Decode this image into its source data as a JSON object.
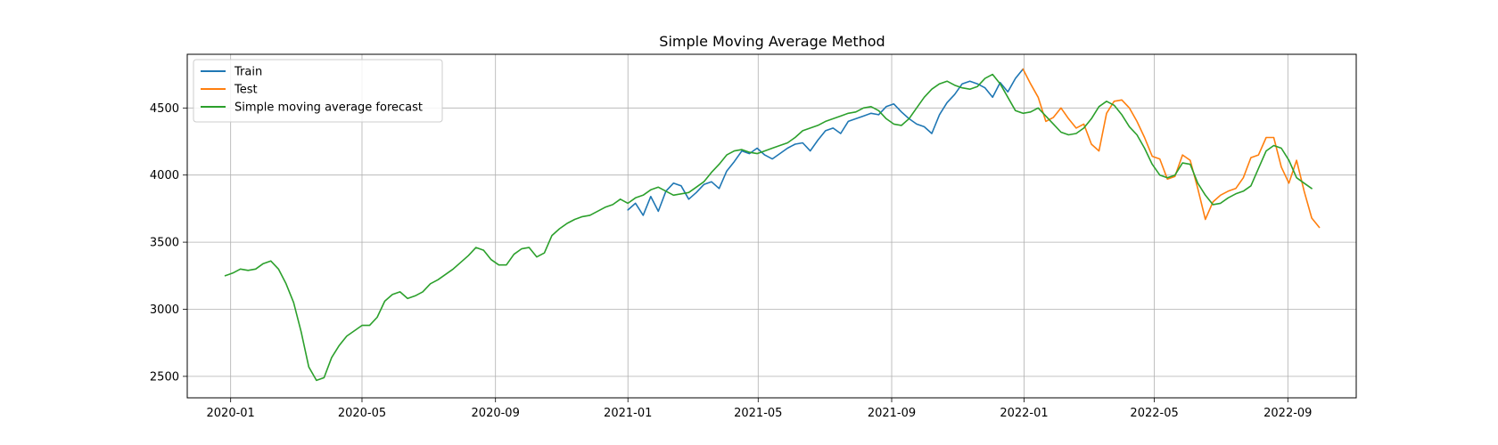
{
  "chart_data": {
    "type": "line",
    "title": "Simple Moving Average Method",
    "xlabel": "",
    "ylabel": "",
    "grid": true,
    "legend_placement": "upper-left",
    "xlim": [
      "2019-11-22",
      "2022-11-03"
    ],
    "ylim": [
      2340,
      4900
    ],
    "x_ticks": [
      "2020-01",
      "2020-05",
      "2020-09",
      "2021-01",
      "2021-05",
      "2021-09",
      "2022-01",
      "2022-05",
      "2022-09"
    ],
    "y_ticks": [
      2500,
      3000,
      3500,
      4000,
      4500
    ],
    "series": [
      {
        "name": "Train",
        "color": "#1f77b4",
        "x": [
          "2021-01-01",
          "2021-01-08",
          "2021-01-15",
          "2021-01-22",
          "2021-01-29",
          "2021-02-05",
          "2021-02-12",
          "2021-02-19",
          "2021-02-26",
          "2021-03-05",
          "2021-03-12",
          "2021-03-19",
          "2021-03-26",
          "2021-04-02",
          "2021-04-09",
          "2021-04-16",
          "2021-04-23",
          "2021-04-30",
          "2021-05-07",
          "2021-05-14",
          "2021-05-21",
          "2021-05-28",
          "2021-06-04",
          "2021-06-11",
          "2021-06-18",
          "2021-06-25",
          "2021-07-02",
          "2021-07-09",
          "2021-07-16",
          "2021-07-23",
          "2021-07-30",
          "2021-08-06",
          "2021-08-13",
          "2021-08-20",
          "2021-08-27",
          "2021-09-03",
          "2021-09-10",
          "2021-09-17",
          "2021-09-24",
          "2021-10-01",
          "2021-10-08",
          "2021-10-15",
          "2021-10-22",
          "2021-10-29",
          "2021-11-05",
          "2021-11-12",
          "2021-11-19",
          "2021-11-26",
          "2021-12-03",
          "2021-12-10",
          "2021-12-17",
          "2021-12-24",
          "2021-12-31"
        ],
        "values": [
          3740,
          3790,
          3700,
          3840,
          3730,
          3880,
          3940,
          3920,
          3820,
          3870,
          3930,
          3950,
          3900,
          4030,
          4100,
          4180,
          4160,
          4200,
          4150,
          4120,
          4160,
          4200,
          4230,
          4240,
          4180,
          4260,
          4330,
          4350,
          4310,
          4400,
          4420,
          4440,
          4460,
          4450,
          4510,
          4530,
          4470,
          4420,
          4380,
          4360,
          4310,
          4450,
          4540,
          4600,
          4680,
          4700,
          4680,
          4650,
          4580,
          4690,
          4620,
          4720,
          4790
        ]
      },
      {
        "name": "Test",
        "color": "#ff7f0e",
        "x": [
          "2021-12-31",
          "2022-01-07",
          "2022-01-14",
          "2022-01-21",
          "2022-01-28",
          "2022-02-04",
          "2022-02-11",
          "2022-02-18",
          "2022-02-25",
          "2022-03-04",
          "2022-03-11",
          "2022-03-18",
          "2022-03-25",
          "2022-04-01",
          "2022-04-08",
          "2022-04-15",
          "2022-04-22",
          "2022-04-29",
          "2022-05-06",
          "2022-05-13",
          "2022-05-20",
          "2022-05-27",
          "2022-06-03",
          "2022-06-10",
          "2022-06-17",
          "2022-06-24",
          "2022-07-01",
          "2022-07-08",
          "2022-07-15",
          "2022-07-22",
          "2022-07-29",
          "2022-08-05",
          "2022-08-12",
          "2022-08-19",
          "2022-08-26",
          "2022-09-02",
          "2022-09-09",
          "2022-09-16",
          "2022-09-23",
          "2022-09-30"
        ],
        "values": [
          4790,
          4680,
          4580,
          4400,
          4430,
          4500,
          4420,
          4350,
          4380,
          4230,
          4180,
          4460,
          4550,
          4560,
          4500,
          4400,
          4280,
          4140,
          4120,
          3970,
          3990,
          4150,
          4110,
          3900,
          3670,
          3800,
          3850,
          3880,
          3900,
          3980,
          4130,
          4150,
          4280,
          4280,
          4060,
          3940,
          4110,
          3880,
          3680,
          3610
        ]
      },
      {
        "name": "Simple moving average forecast",
        "color": "#2ca02c",
        "x": [
          "2019-12-27",
          "2020-01-03",
          "2020-01-10",
          "2020-01-17",
          "2020-01-24",
          "2020-01-31",
          "2020-02-07",
          "2020-02-14",
          "2020-02-21",
          "2020-02-28",
          "2020-03-06",
          "2020-03-13",
          "2020-03-20",
          "2020-03-27",
          "2020-04-03",
          "2020-04-10",
          "2020-04-17",
          "2020-04-24",
          "2020-05-01",
          "2020-05-08",
          "2020-05-15",
          "2020-05-22",
          "2020-05-29",
          "2020-06-05",
          "2020-06-12",
          "2020-06-19",
          "2020-06-26",
          "2020-07-03",
          "2020-07-10",
          "2020-07-17",
          "2020-07-24",
          "2020-07-31",
          "2020-08-07",
          "2020-08-14",
          "2020-08-21",
          "2020-08-28",
          "2020-09-04",
          "2020-09-11",
          "2020-09-18",
          "2020-09-25",
          "2020-10-02",
          "2020-10-09",
          "2020-10-16",
          "2020-10-23",
          "2020-10-30",
          "2020-11-06",
          "2020-11-13",
          "2020-11-20",
          "2020-11-27",
          "2020-12-04",
          "2020-12-11",
          "2020-12-18",
          "2020-12-25",
          "2021-01-01",
          "2021-01-08",
          "2021-01-15",
          "2021-01-22",
          "2021-01-29",
          "2021-02-05",
          "2021-02-12",
          "2021-02-19",
          "2021-02-26",
          "2021-03-05",
          "2021-03-12",
          "2021-03-19",
          "2021-03-26",
          "2021-04-02",
          "2021-04-09",
          "2021-04-16",
          "2021-04-23",
          "2021-04-30",
          "2021-05-07",
          "2021-05-14",
          "2021-05-21",
          "2021-05-28",
          "2021-06-04",
          "2021-06-11",
          "2021-06-18",
          "2021-06-25",
          "2021-07-02",
          "2021-07-09",
          "2021-07-16",
          "2021-07-23",
          "2021-07-30",
          "2021-08-06",
          "2021-08-13",
          "2021-08-20",
          "2021-08-27",
          "2021-09-03",
          "2021-09-10",
          "2021-09-17",
          "2021-09-24",
          "2021-10-01",
          "2021-10-08",
          "2021-10-15",
          "2021-10-22",
          "2021-10-29",
          "2021-11-05",
          "2021-11-12",
          "2021-11-19",
          "2021-11-26",
          "2021-12-03",
          "2021-12-10",
          "2021-12-17",
          "2021-12-24",
          "2021-12-31",
          "2022-01-07",
          "2022-01-14",
          "2022-01-21",
          "2022-01-28",
          "2022-02-04",
          "2022-02-11",
          "2022-02-18",
          "2022-02-25",
          "2022-03-04",
          "2022-03-11",
          "2022-03-18",
          "2022-03-25",
          "2022-04-01",
          "2022-04-08",
          "2022-04-15",
          "2022-04-22",
          "2022-04-29",
          "2022-05-06",
          "2022-05-13",
          "2022-05-20",
          "2022-05-27",
          "2022-06-03",
          "2022-06-10",
          "2022-06-17",
          "2022-06-24",
          "2022-07-01",
          "2022-07-08",
          "2022-07-15",
          "2022-07-22",
          "2022-07-29",
          "2022-08-05",
          "2022-08-12",
          "2022-08-19",
          "2022-08-26",
          "2022-09-02",
          "2022-09-09",
          "2022-09-16",
          "2022-09-23"
        ],
        "values": [
          3250,
          3270,
          3300,
          3290,
          3300,
          3340,
          3360,
          3300,
          3190,
          3050,
          2830,
          2570,
          2470,
          2490,
          2640,
          2730,
          2800,
          2840,
          2880,
          2880,
          2940,
          3060,
          3110,
          3130,
          3080,
          3100,
          3130,
          3190,
          3220,
          3260,
          3300,
          3350,
          3400,
          3460,
          3440,
          3370,
          3330,
          3330,
          3410,
          3450,
          3460,
          3390,
          3420,
          3550,
          3600,
          3640,
          3670,
          3690,
          3700,
          3730,
          3760,
          3780,
          3820,
          3790,
          3830,
          3850,
          3890,
          3910,
          3880,
          3850,
          3860,
          3870,
          3910,
          3950,
          4020,
          4080,
          4150,
          4180,
          4190,
          4170,
          4160,
          4180,
          4200,
          4220,
          4240,
          4280,
          4330,
          4350,
          4370,
          4400,
          4420,
          4440,
          4460,
          4470,
          4500,
          4510,
          4480,
          4420,
          4380,
          4370,
          4420,
          4500,
          4580,
          4640,
          4680,
          4700,
          4670,
          4650,
          4640,
          4660,
          4720,
          4750,
          4680,
          4580,
          4480,
          4460,
          4470,
          4500,
          4440,
          4380,
          4320,
          4300,
          4310,
          4350,
          4420,
          4510,
          4550,
          4520,
          4450,
          4360,
          4300,
          4200,
          4080,
          4000,
          3980,
          4000,
          4090,
          4080,
          3940,
          3850,
          3780,
          3790,
          3830,
          3860,
          3880,
          3920,
          4050,
          4180,
          4220,
          4200,
          4110,
          3980,
          3940,
          3900
        ]
      }
    ]
  }
}
